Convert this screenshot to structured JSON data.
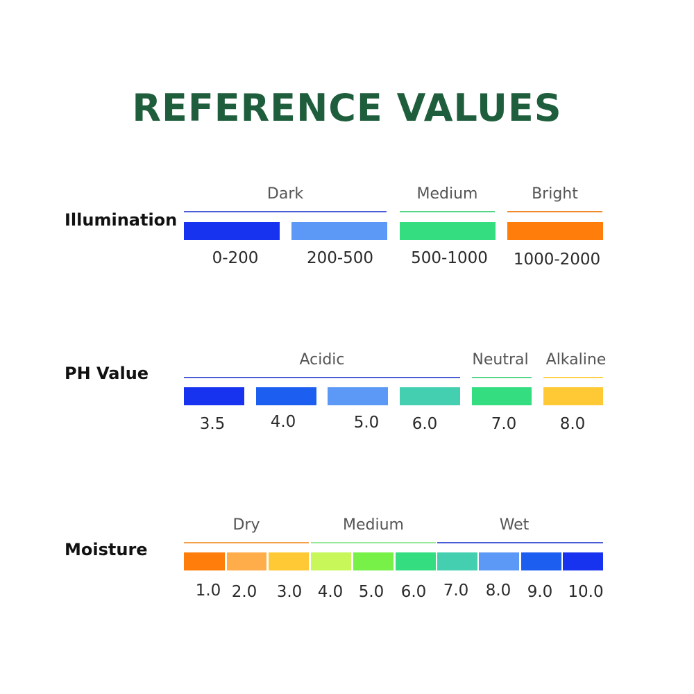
{
  "title": "REFERENCE VALUES",
  "illumination": {
    "label": "Illumination",
    "bands": [
      {
        "label": "Dark",
        "color": "#4a5cd6"
      },
      {
        "label": "Medium",
        "color": "#57d68a"
      },
      {
        "label": "Bright",
        "color": "#f08a2a"
      }
    ],
    "swatches": [
      {
        "value": "0-200",
        "color": "#1733f0"
      },
      {
        "value": "200-500",
        "color": "#5c99f7"
      },
      {
        "value": "500-1000",
        "color": "#33dd80"
      },
      {
        "value": "1000-2000",
        "color": "#ff7d0a"
      }
    ]
  },
  "ph": {
    "label": "PH Value",
    "bands": [
      {
        "label": "Acidic",
        "color": "#4a5cd6"
      },
      {
        "label": "Neutral",
        "color": "#57d68a"
      },
      {
        "label": "Alkaline",
        "color": "#ffd04a"
      }
    ],
    "swatches": [
      {
        "value": "3.5",
        "color": "#1733f0"
      },
      {
        "value": "4.0",
        "color": "#1c5ff0"
      },
      {
        "value": "5.0",
        "color": "#5c99f7"
      },
      {
        "value": "6.0",
        "color": "#44d0b0"
      },
      {
        "value": "7.0",
        "color": "#33dd80"
      },
      {
        "value": "8.0",
        "color": "#ffc935"
      }
    ]
  },
  "moisture": {
    "label": "Moisture",
    "bands": [
      {
        "label": "Dry",
        "color": "#f4a04a"
      },
      {
        "label": "Medium",
        "color": "#9ae89a"
      },
      {
        "label": "Wet",
        "color": "#4a5cd6"
      }
    ],
    "swatches": [
      {
        "value": "1.0",
        "color": "#ff7d0a"
      },
      {
        "value": "2.0",
        "color": "#ffad4a"
      },
      {
        "value": "3.0",
        "color": "#ffc935"
      },
      {
        "value": "4.0",
        "color": "#c8f75a"
      },
      {
        "value": "5.0",
        "color": "#77f048"
      },
      {
        "value": "6.0",
        "color": "#33dd80"
      },
      {
        "value": "7.0",
        "color": "#44d0b0"
      },
      {
        "value": "8.0",
        "color": "#5c99f7"
      },
      {
        "value": "9.0",
        "color": "#1c5ff0"
      },
      {
        "value": "10.0",
        "color": "#1733f0"
      }
    ]
  }
}
